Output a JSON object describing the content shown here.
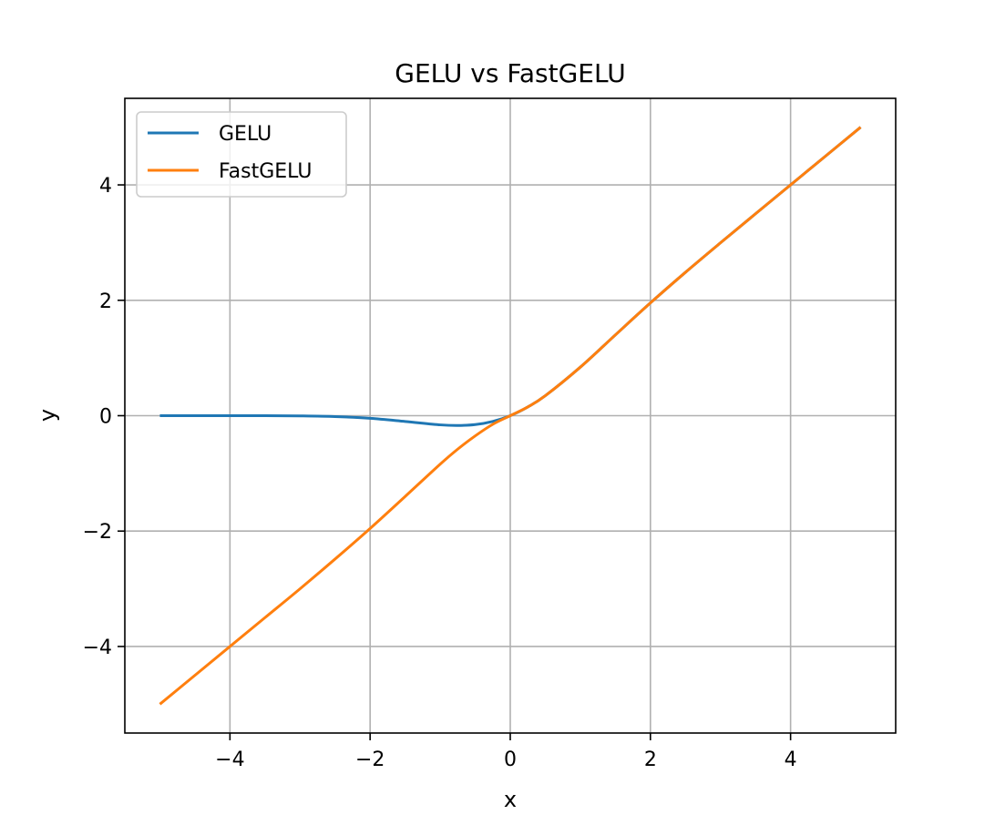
{
  "chart_data": {
    "type": "line",
    "title": "GELU vs FastGELU",
    "xlabel": "x",
    "ylabel": "y",
    "xlim": [
      -5.5,
      5.5
    ],
    "ylim": [
      -5.5,
      5.5
    ],
    "xticks": [
      -4,
      -2,
      0,
      2,
      4
    ],
    "yticks": [
      -4,
      -2,
      0,
      2,
      4
    ],
    "xtick_labels": [
      "−4",
      "−2",
      "0",
      "2",
      "4"
    ],
    "ytick_labels": [
      "−4",
      "−2",
      "0",
      "2",
      "4"
    ],
    "grid": true,
    "legend_position": "top-left",
    "x": [
      -5,
      -4.5,
      -4,
      -3.5,
      -3,
      -2.5,
      -2,
      -1.5,
      -1,
      -0.75,
      -0.5,
      -0.25,
      0,
      0.25,
      0.5,
      1,
      1.5,
      2,
      2.5,
      3,
      3.5,
      4,
      4.5,
      5
    ],
    "series": [
      {
        "name": "GELU",
        "color": "#1f77b4",
        "values": [
          0.0,
          0.0,
          -0.0001,
          -0.0008,
          -0.004,
          -0.0155,
          -0.0455,
          -0.1002,
          -0.1587,
          -0.17,
          -0.1543,
          -0.0995,
          0.0,
          0.1505,
          0.3457,
          0.8413,
          1.3998,
          1.9545,
          2.4845,
          2.996,
          3.4992,
          3.9999,
          4.5,
          5.0
        ]
      },
      {
        "name": "FastGELU",
        "color": "#ff7f0e",
        "values": [
          -5.0,
          -4.5,
          -4.0,
          -3.5,
          -3.0,
          -2.4845,
          -1.9545,
          -1.4,
          -0.84,
          -0.58,
          -0.35,
          -0.15,
          0.0,
          0.1505,
          0.3457,
          0.8413,
          1.3998,
          1.9545,
          2.4845,
          2.996,
          3.4992,
          3.9999,
          4.5,
          5.0
        ]
      }
    ]
  }
}
